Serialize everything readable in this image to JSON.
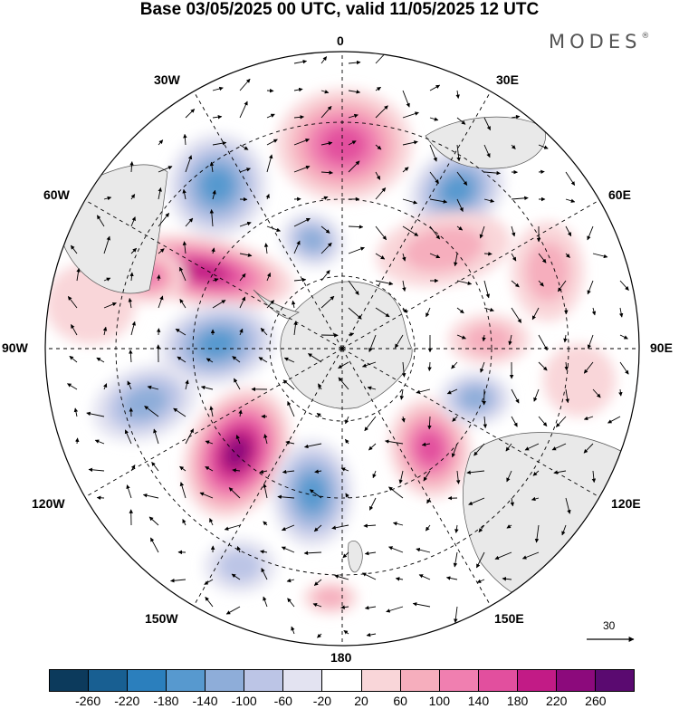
{
  "title": "Base 03/05/2025 00 UTC, valid 11/05/2025 12 UTC",
  "brand": "MODES",
  "brand_mark": "®",
  "map": {
    "projection": "south-polar-stereographic",
    "longitude_labels": {
      "top": "0",
      "top_left": "30W",
      "top_right": "30E",
      "upper_left": "60W",
      "upper_right": "60E",
      "left": "90W",
      "right": "90E",
      "lower_left": "120W",
      "lower_right": "120E",
      "bottom_left": "150W",
      "bottom_right": "150E",
      "bottom": "180"
    },
    "vector_reference": "30"
  },
  "colorbar": {
    "colors": [
      "#0c3a5c",
      "#185f92",
      "#2b7fbd",
      "#5799cf",
      "#8eadd9",
      "#bcc5e6",
      "#e3e3f1",
      "#ffffff",
      "#f9d6d9",
      "#f6aebd",
      "#f07fb0",
      "#e24f9e",
      "#c21b86",
      "#8c0a7c",
      "#5a0a70"
    ],
    "ticks": [
      "-260",
      "-220",
      "-180",
      "-140",
      "-100",
      "-60",
      "-20",
      "20",
      "60",
      "100",
      "140",
      "180",
      "220",
      "260"
    ]
  }
}
